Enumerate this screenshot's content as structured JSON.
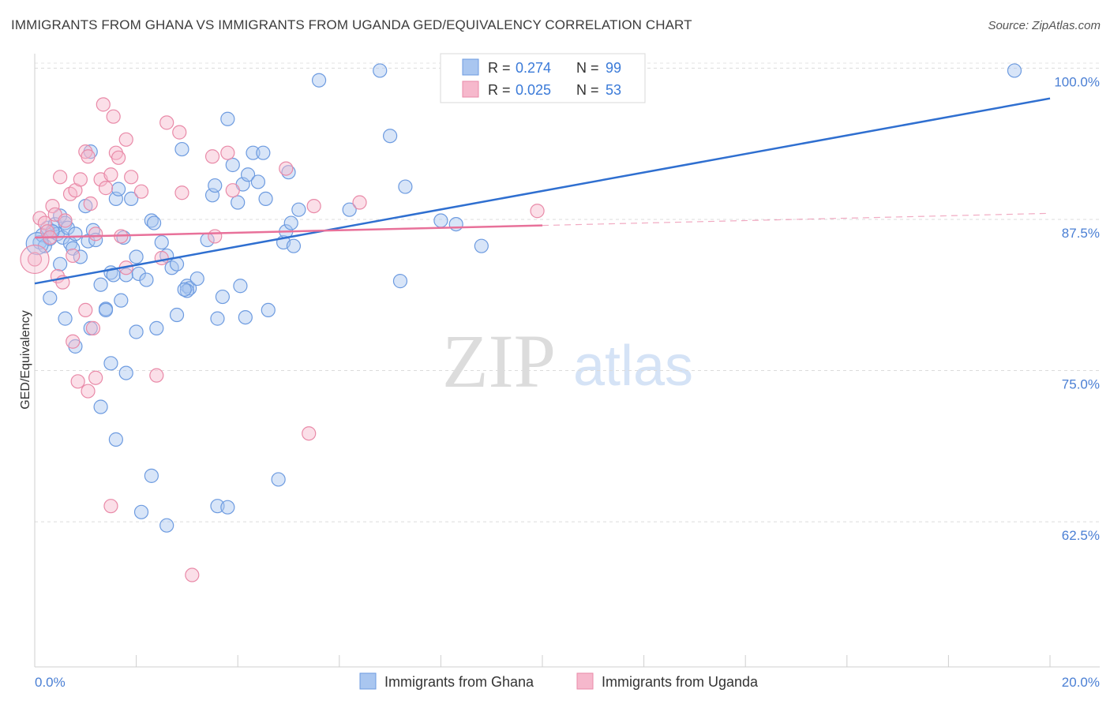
{
  "title": "IMMIGRANTS FROM GHANA VS IMMIGRANTS FROM UGANDA GED/EQUIVALENCY CORRELATION CHART",
  "source": "Source: ZipAtlas.com",
  "watermark": {
    "zip": "ZIP",
    "atlas": "atlas"
  },
  "colors": {
    "ghana_fill": "#a9c6f0",
    "ghana_stroke": "#6d9be0",
    "ghana_line": "#2f6fd0",
    "uganda_fill": "#f6b8cc",
    "uganda_stroke": "#e98aa8",
    "uganda_line": "#e8719a",
    "tick_label": "#4a7fd4"
  },
  "legend": {
    "r_label": "R =",
    "n_label": "N =",
    "ghana": {
      "r": "0.274",
      "n": "99"
    },
    "uganda": {
      "r": "0.025",
      "n": "53"
    }
  },
  "chart_data": {
    "type": "scatter",
    "title": "IMMIGRANTS FROM GHANA VS IMMIGRANTS FROM UGANDA GED/EQUIVALENCY CORRELATION CHART",
    "xlabel": "",
    "ylabel": "GED/Equivalency",
    "xlim": [
      0,
      20
    ],
    "ylim": [
      50.5,
      101.2
    ],
    "x_tick_labels": {
      "min": "0.0%",
      "max": "20.0%"
    },
    "y_ticks": [
      100,
      87.5,
      75,
      62.5
    ],
    "y_tick_labels": [
      "100.0%",
      "87.5%",
      "75.0%",
      "62.5%"
    ],
    "series": [
      {
        "name": "Immigrants from Ghana",
        "trend": {
          "x": [
            0,
            20
          ],
          "y": [
            82.2,
            97.5
          ],
          "dashed_from": null
        },
        "points": [
          [
            0.1,
            85.6
          ],
          [
            0.15,
            86.2
          ],
          [
            0.2,
            85.3
          ],
          [
            0.25,
            86.8
          ],
          [
            0.3,
            85.9
          ],
          [
            0.35,
            86.5
          ],
          [
            0.4,
            87.1
          ],
          [
            0.45,
            86.3
          ],
          [
            0.5,
            87.8
          ],
          [
            0.55,
            86.0
          ],
          [
            0.6,
            87.2
          ],
          [
            0.65,
            86.8
          ],
          [
            0.7,
            85.5
          ],
          [
            0.75,
            85.1
          ],
          [
            0.8,
            86.3
          ],
          [
            0.9,
            84.4
          ],
          [
            1.0,
            88.6
          ],
          [
            1.05,
            85.7
          ],
          [
            1.1,
            93.1
          ],
          [
            1.15,
            86.6
          ],
          [
            1.2,
            85.8
          ],
          [
            1.3,
            82.1
          ],
          [
            1.4,
            80.1
          ],
          [
            1.5,
            83.1
          ],
          [
            1.55,
            82.9
          ],
          [
            1.6,
            89.2
          ],
          [
            1.65,
            90.0
          ],
          [
            1.7,
            80.8
          ],
          [
            1.8,
            82.9
          ],
          [
            1.9,
            89.2
          ],
          [
            2.0,
            84.4
          ],
          [
            2.05,
            83.0
          ],
          [
            2.2,
            82.5
          ],
          [
            2.3,
            87.4
          ],
          [
            2.35,
            87.2
          ],
          [
            2.5,
            85.6
          ],
          [
            2.6,
            84.5
          ],
          [
            2.7,
            83.5
          ],
          [
            2.8,
            83.8
          ],
          [
            2.9,
            93.3
          ],
          [
            3.0,
            82.0
          ],
          [
            3.05,
            81.8
          ],
          [
            3.2,
            82.6
          ],
          [
            3.4,
            85.8
          ],
          [
            3.5,
            89.5
          ],
          [
            3.55,
            90.3
          ],
          [
            3.6,
            79.3
          ],
          [
            3.7,
            81.1
          ],
          [
            3.8,
            95.8
          ],
          [
            3.9,
            92.0
          ],
          [
            4.0,
            88.9
          ],
          [
            4.05,
            82.0
          ],
          [
            4.1,
            90.4
          ],
          [
            4.2,
            91.2
          ],
          [
            4.3,
            93.0
          ],
          [
            4.4,
            90.6
          ],
          [
            4.5,
            93.0
          ],
          [
            4.55,
            89.2
          ],
          [
            4.6,
            80.0
          ],
          [
            4.8,
            66.0
          ],
          [
            4.9,
            85.6
          ],
          [
            4.95,
            86.5
          ],
          [
            5.0,
            91.4
          ],
          [
            5.05,
            87.2
          ],
          [
            5.1,
            85.3
          ],
          [
            5.2,
            88.3
          ],
          [
            5.6,
            99.0
          ],
          [
            6.2,
            88.3
          ],
          [
            6.8,
            99.8
          ],
          [
            7.0,
            94.4
          ],
          [
            7.2,
            82.4
          ],
          [
            7.3,
            90.2
          ],
          [
            8.0,
            87.4
          ],
          [
            8.3,
            87.1
          ],
          [
            8.8,
            85.3
          ],
          [
            19.3,
            99.8
          ],
          [
            0.3,
            81.0
          ],
          [
            0.5,
            83.8
          ],
          [
            0.6,
            79.3
          ],
          [
            0.8,
            77.0
          ],
          [
            1.1,
            78.5
          ],
          [
            1.3,
            72.0
          ],
          [
            1.5,
            75.6
          ],
          [
            1.6,
            69.3
          ],
          [
            1.8,
            74.8
          ],
          [
            2.0,
            78.2
          ],
          [
            2.1,
            63.3
          ],
          [
            2.3,
            66.3
          ],
          [
            2.4,
            78.5
          ],
          [
            2.6,
            62.2
          ],
          [
            2.8,
            79.6
          ],
          [
            3.0,
            81.6
          ],
          [
            3.6,
            63.8
          ],
          [
            3.8,
            63.7
          ],
          [
            1.4,
            80.0
          ],
          [
            1.75,
            86.0
          ],
          [
            2.95,
            81.7
          ],
          [
            4.15,
            79.4
          ],
          [
            0.35,
            86.5
          ]
        ]
      },
      {
        "name": "Immigrants from Uganda",
        "trend": {
          "x": [
            0,
            20
          ],
          "y": [
            86.0,
            88.0
          ],
          "dashed_from": 10.0
        },
        "points": [
          [
            0.0,
            84.2
          ],
          [
            0.1,
            87.6
          ],
          [
            0.2,
            87.2
          ],
          [
            0.25,
            86.5
          ],
          [
            0.3,
            86.0
          ],
          [
            0.35,
            88.6
          ],
          [
            0.4,
            87.9
          ],
          [
            0.5,
            91.0
          ],
          [
            0.6,
            87.4
          ],
          [
            0.7,
            89.6
          ],
          [
            0.75,
            84.5
          ],
          [
            0.8,
            89.9
          ],
          [
            0.9,
            90.8
          ],
          [
            1.0,
            93.1
          ],
          [
            1.05,
            92.7
          ],
          [
            1.1,
            88.8
          ],
          [
            1.2,
            86.3
          ],
          [
            1.3,
            90.8
          ],
          [
            1.4,
            90.1
          ],
          [
            1.5,
            91.2
          ],
          [
            1.6,
            93.0
          ],
          [
            1.65,
            92.6
          ],
          [
            1.7,
            86.1
          ],
          [
            1.8,
            94.1
          ],
          [
            1.9,
            91.0
          ],
          [
            1.35,
            97.0
          ],
          [
            1.55,
            96.0
          ],
          [
            2.1,
            89.8
          ],
          [
            2.6,
            95.5
          ],
          [
            2.85,
            94.7
          ],
          [
            2.9,
            89.7
          ],
          [
            3.5,
            92.7
          ],
          [
            3.8,
            93.0
          ],
          [
            3.9,
            89.9
          ],
          [
            4.95,
            91.7
          ],
          [
            5.5,
            88.6
          ],
          [
            6.4,
            88.9
          ],
          [
            9.9,
            88.2
          ],
          [
            0.45,
            82.8
          ],
          [
            0.55,
            82.3
          ],
          [
            0.75,
            77.4
          ],
          [
            0.85,
            74.1
          ],
          [
            1.0,
            80.0
          ],
          [
            1.15,
            78.5
          ],
          [
            1.2,
            74.4
          ],
          [
            1.05,
            73.3
          ],
          [
            1.5,
            63.8
          ],
          [
            2.4,
            74.6
          ],
          [
            3.1,
            58.1
          ],
          [
            5.4,
            69.8
          ],
          [
            1.8,
            83.5
          ],
          [
            2.5,
            84.3
          ],
          [
            3.55,
            86.1
          ]
        ]
      }
    ],
    "legend": [
      "Immigrants from Ghana",
      "Immigrants from Uganda"
    ]
  }
}
